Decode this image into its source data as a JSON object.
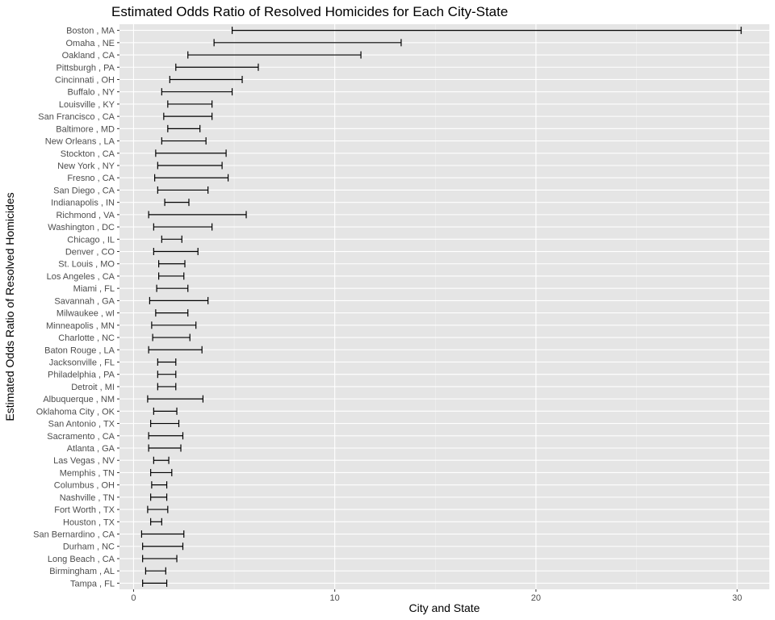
{
  "chart_data": {
    "type": "errorbar",
    "title": "Estimated Odds Ratio of Resolved Homicides for Each City-State",
    "xlabel": "City and State",
    "ylabel": "Estimated Odds Ratio of Resolved Homicides",
    "xlim": [
      -0.7,
      31.6
    ],
    "xticks": [
      0,
      10,
      20,
      30
    ],
    "grid": true,
    "legend": "none",
    "colors": {
      "panel": "#e5e5e5",
      "grid_major": "#ffffff",
      "grid_minor": "#f2f2f2",
      "bar": "#000000",
      "tick_text": "#4d4d4d"
    },
    "categories": [
      "Boston , MA",
      "Omaha , NE",
      "Oakland , CA",
      "Pittsburgh , PA",
      "Cincinnati , OH",
      "Buffalo , NY",
      "Louisville , KY",
      "San Francisco , CA",
      "Baltimore , MD",
      "New Orleans , LA",
      "Stockton , CA",
      "New York , NY",
      "Fresno , CA",
      "San Diego , CA",
      "Indianapolis , IN",
      "Richmond , VA",
      "Washington , DC",
      "Chicago , IL",
      "Denver , CO",
      "St. Louis , MO",
      "Los Angeles , CA",
      "Miami , FL",
      "Savannah , GA",
      "Milwaukee , wI",
      "Minneapolis , MN",
      "Charlotte , NC",
      "Baton Rouge , LA",
      "Jacksonville , FL",
      "Philadelphia , PA",
      "Detroit , MI",
      "Albuquerque , NM",
      "Oklahoma City , OK",
      "San Antonio , TX",
      "Sacramento , CA",
      "Atlanta , GA",
      "Las Vegas , NV",
      "Memphis , TN",
      "Columbus , OH",
      "Nashville , TN",
      "Fort Worth , TX",
      "Houston , TX",
      "San Bernardino , CA",
      "Durham , NC",
      "Long Beach , CA",
      "Birmingham , AL",
      "Tampa , FL"
    ],
    "lower": [
      4.9,
      4.0,
      2.7,
      2.1,
      1.8,
      1.4,
      1.7,
      1.5,
      1.7,
      1.4,
      1.1,
      1.2,
      1.05,
      1.2,
      1.55,
      0.75,
      1.0,
      1.4,
      1.0,
      1.25,
      1.25,
      1.15,
      0.8,
      1.1,
      0.9,
      0.95,
      0.75,
      1.2,
      1.2,
      1.2,
      0.7,
      1.0,
      0.85,
      0.75,
      0.75,
      1.0,
      0.85,
      0.9,
      0.85,
      0.7,
      0.85,
      0.4,
      0.45,
      0.45,
      0.6,
      0.45
    ],
    "upper": [
      30.2,
      13.3,
      11.3,
      6.2,
      5.4,
      4.9,
      3.9,
      3.9,
      3.3,
      3.6,
      4.6,
      4.4,
      4.7,
      3.7,
      2.75,
      5.6,
      3.9,
      2.4,
      3.2,
      2.55,
      2.5,
      2.7,
      3.7,
      2.7,
      3.1,
      2.8,
      3.4,
      2.1,
      2.1,
      2.1,
      3.45,
      2.15,
      2.25,
      2.45,
      2.35,
      1.75,
      1.9,
      1.65,
      1.65,
      1.7,
      1.4,
      2.5,
      2.45,
      2.15,
      1.6,
      1.65
    ]
  }
}
